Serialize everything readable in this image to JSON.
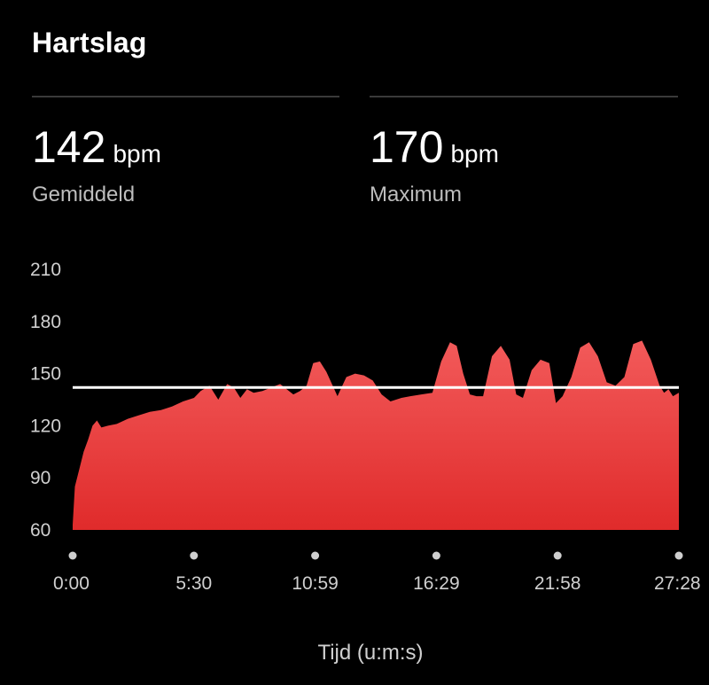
{
  "header": {
    "title": "Hartslag"
  },
  "stats": {
    "average": {
      "value": "142",
      "unit": "bpm",
      "label": "Gemiddeld"
    },
    "maximum": {
      "value": "170",
      "unit": "bpm",
      "label": "Maximum"
    }
  },
  "colors": {
    "fill_top": "#f25a5a",
    "fill_bottom": "#e02b2b",
    "average_line": "#ffffff"
  },
  "chart_data": {
    "type": "area",
    "xlabel": "Tijd (u:m:s)",
    "ylabel": "",
    "ylim": [
      60,
      210
    ],
    "yticks": [
      60,
      90,
      120,
      150,
      180,
      210
    ],
    "xtick_labels": [
      "0:00",
      "5:30",
      "10:59",
      "16:29",
      "21:58",
      "27:28"
    ],
    "x_unit": "minutes",
    "xlim": [
      0,
      27.47
    ],
    "average_line": 142,
    "x": [
      0,
      0.1,
      0.3,
      0.5,
      0.7,
      0.9,
      1.1,
      1.3,
      1.6,
      2.0,
      2.5,
      3.0,
      3.5,
      4.0,
      4.5,
      5.0,
      5.5,
      5.8,
      6.2,
      6.6,
      7.0,
      7.3,
      7.6,
      7.9,
      8.2,
      8.6,
      9.0,
      9.4,
      9.7,
      10.0,
      10.3,
      10.6,
      10.9,
      11.2,
      11.5,
      12.0,
      12.4,
      12.8,
      13.2,
      13.6,
      14.0,
      14.4,
      14.9,
      15.3,
      15.8,
      16.3,
      16.7,
      17.1,
      17.4,
      17.7,
      18.0,
      18.3,
      18.6,
      19.0,
      19.4,
      19.8,
      20.1,
      20.4,
      20.8,
      21.2,
      21.6,
      21.9,
      22.2,
      22.6,
      23.0,
      23.4,
      23.8,
      24.2,
      24.6,
      25.0,
      25.4,
      25.8,
      26.2,
      26.6,
      26.8,
      27.0,
      27.2,
      27.47
    ],
    "values": [
      63,
      85,
      95,
      105,
      112,
      120,
      123,
      119,
      120,
      121,
      124,
      126,
      128,
      129,
      131,
      134,
      136,
      140,
      143,
      135,
      144,
      142,
      136,
      141,
      139,
      140,
      142,
      144,
      141,
      138,
      140,
      143,
      156,
      157,
      151,
      137,
      148,
      150,
      149,
      146,
      138,
      134,
      136,
      137,
      138,
      139,
      157,
      168,
      166,
      150,
      138,
      137,
      137,
      160,
      166,
      158,
      138,
      136,
      152,
      158,
      156,
      133,
      137,
      148,
      165,
      168,
      160,
      145,
      143,
      148,
      167,
      169,
      158,
      143,
      139,
      141,
      137,
      139
    ]
  }
}
